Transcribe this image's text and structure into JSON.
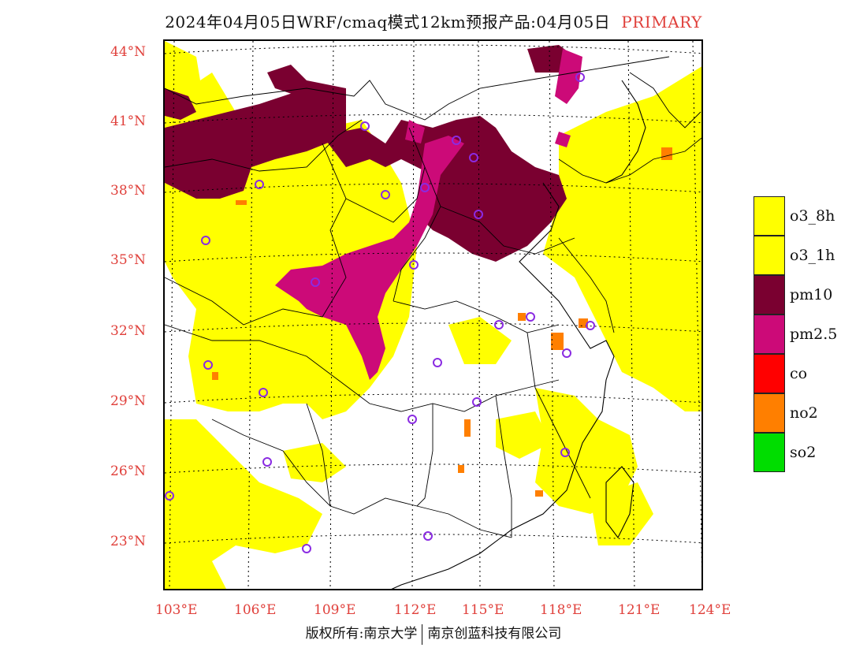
{
  "title": {
    "main": "2024年04月05日WRF/cmaq模式12km预报产品:04月05日",
    "tag": "PRIMARY"
  },
  "lat_labels": [
    "44°N",
    "41°N",
    "38°N",
    "35°N",
    "32°N",
    "29°N",
    "26°N",
    "23°N"
  ],
  "lon_labels": [
    "103°E",
    "106°E",
    "109°E",
    "112°E",
    "115°E",
    "118°E",
    "121°E",
    "124°E"
  ],
  "legend": [
    {
      "label": "o3_8h",
      "color": "#ffff00"
    },
    {
      "label": "o3_1h",
      "color": "#ffff00"
    },
    {
      "label": "pm10",
      "color": "#7a0030"
    },
    {
      "label": "pm2.5",
      "color": "#cc0a78"
    },
    {
      "label": "co",
      "color": "#ff0000"
    },
    {
      "label": "no2",
      "color": "#ff7f00"
    },
    {
      "label": "so2",
      "color": "#00dd00"
    }
  ],
  "footer": {
    "left": "版权所有:南京大学",
    "right": "南京创蓝科技有限公司"
  },
  "colors": {
    "accent": "#e0403b",
    "ozone": "#ffff00",
    "pm10": "#7a0030",
    "pm25": "#cc0a78",
    "no2": "#ff7f00",
    "station": "#8a2be2"
  }
}
